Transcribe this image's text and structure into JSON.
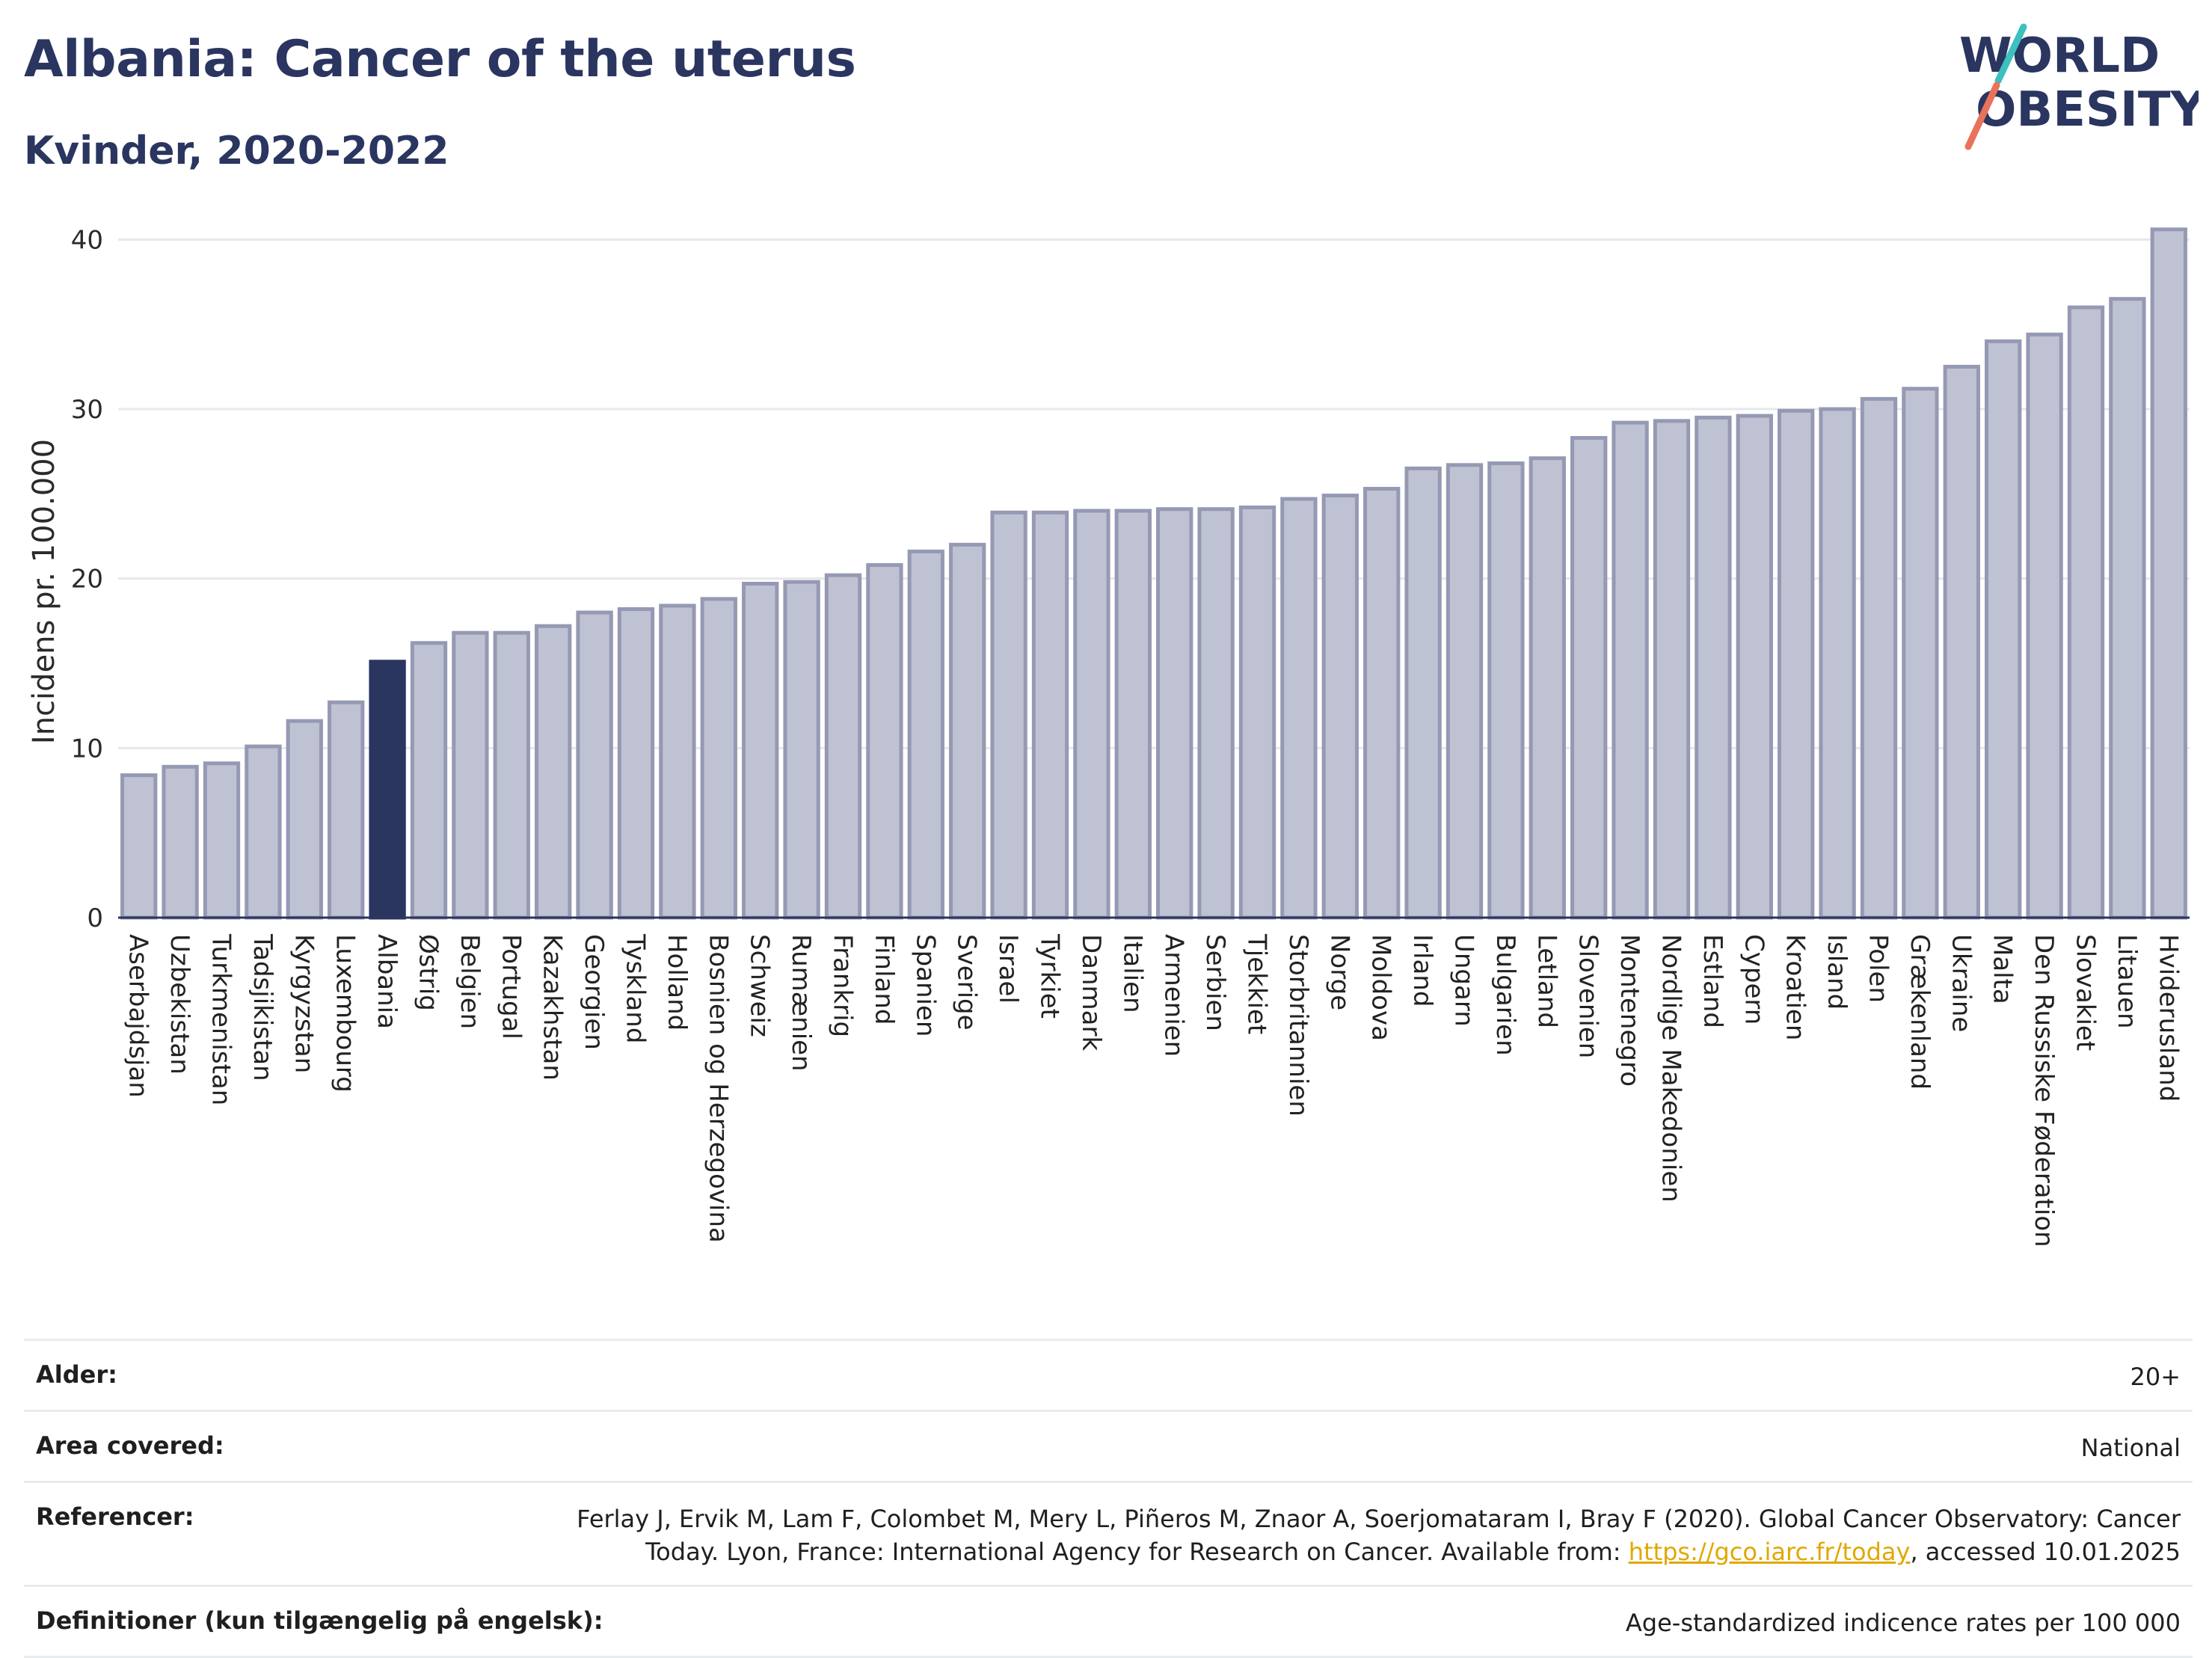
{
  "header": {
    "title": "Albania: Cancer of the uterus",
    "subtitle": "Kvinder, 2020-2022"
  },
  "logo": {
    "line1": "WORLD",
    "line2": "OBESITY",
    "accent_colors": [
      "#3cc0c0",
      "#e8735a"
    ]
  },
  "colors": {
    "highlight": "#2a3560",
    "bar_fill": "#bfc2d2",
    "bar_stroke": "#9599b3",
    "axis_text": "#2a2a2a",
    "title": "#2a3560"
  },
  "chart_data": {
    "type": "bar",
    "title": "Albania: Cancer of the uterus",
    "subtitle": "Kvinder, 2020-2022",
    "ylabel": "Incidens pr. 100.000",
    "xlabel": "",
    "ylim": [
      0,
      42
    ],
    "yticks": [
      0,
      10,
      20,
      30,
      40
    ],
    "grid": true,
    "highlight": "Albania",
    "categories": [
      "Aserbajdsjan",
      "Uzbekistan",
      "Turkmenistan",
      "Tadsjikistan",
      "Kyrgyzstan",
      "Luxembourg",
      "Albania",
      "Østrig",
      "Belgien",
      "Portugal",
      "Kazakhstan",
      "Georgien",
      "Tyskland",
      "Holland",
      "Bosnien og Herzegovina",
      "Schweiz",
      "Rumænien",
      "Frankrig",
      "Finland",
      "Spanien",
      "Sverige",
      "Israel",
      "Tyrkiet",
      "Danmark",
      "Italien",
      "Armenien",
      "Serbien",
      "Tjekkiet",
      "Storbritannien",
      "Norge",
      "Moldova",
      "Irland",
      "Ungarn",
      "Bulgarien",
      "Letland",
      "Slovenien",
      "Montenegro",
      "Nordlige Makedonien",
      "Estland",
      "Cypern",
      "Kroatien",
      "Island",
      "Polen",
      "Grækenland",
      "Ukraine",
      "Malta",
      "Den Russiske Føderation",
      "Slovakiet",
      "Litauen",
      "Hviderusland"
    ],
    "values": [
      8.4,
      8.9,
      9.1,
      10.1,
      11.6,
      12.7,
      15.1,
      16.2,
      16.8,
      16.8,
      17.2,
      18.0,
      18.2,
      18.4,
      18.8,
      19.7,
      19.8,
      20.2,
      20.8,
      21.6,
      22.0,
      23.9,
      23.9,
      24.0,
      24.0,
      24.1,
      24.1,
      24.2,
      24.7,
      24.9,
      25.3,
      26.5,
      26.7,
      26.8,
      27.1,
      28.3,
      29.2,
      29.3,
      29.5,
      29.6,
      29.9,
      30.0,
      30.6,
      31.2,
      32.5,
      34.0,
      34.4,
      36.0,
      36.5,
      40.6
    ]
  },
  "info": {
    "rows": [
      {
        "key": "Alder:",
        "value": "20+"
      },
      {
        "key": "Area covered:",
        "value": "National"
      },
      {
        "key": "Referencer:",
        "value_line1": "Ferlay J, Ervik M, Lam F, Colombet M, Mery L, Piñeros M, Znaor A, Soerjomataram I, Bray F (2020). Global Cancer Observatory: Cancer",
        "value_line2_pre": "Today. Lyon, France: International Agency for Research on Cancer. Available from: ",
        "link": "https://gco.iarc.fr/today",
        "value_line2_post": ", accessed 10.01.2025"
      },
      {
        "key": "Definitioner (kun tilgængelig på engelsk):",
        "value": "Age-standardized indicence rates per 100 000"
      }
    ]
  }
}
